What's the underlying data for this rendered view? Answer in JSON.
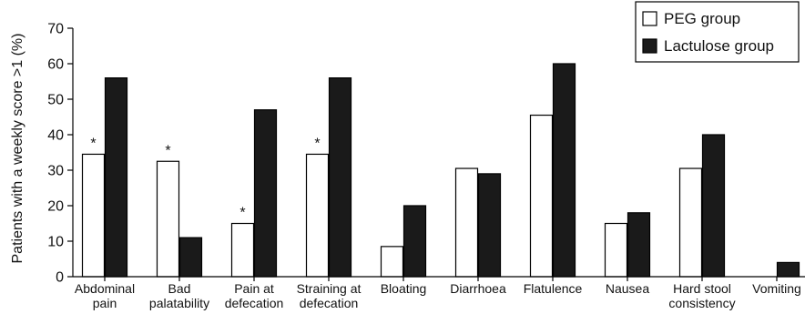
{
  "chart_data": {
    "type": "bar",
    "ylabel": "Patients with a weekly score >1 (%)",
    "xlabel": "",
    "ylim": [
      0,
      70
    ],
    "yticks": [
      0,
      10,
      20,
      30,
      40,
      50,
      60,
      70
    ],
    "categories": [
      [
        "Abdominal",
        "pain"
      ],
      [
        "Bad",
        "palatability"
      ],
      [
        "Pain at",
        "defecation"
      ],
      [
        "Straining at",
        "defecation"
      ],
      [
        "Bloating"
      ],
      [
        "Diarrhoea"
      ],
      [
        "Flatulence"
      ],
      [
        "Nausea"
      ],
      [
        "Hard stool",
        "consistency"
      ],
      [
        "Vomiting"
      ]
    ],
    "series": [
      {
        "name": "PEG group",
        "fill": "#ffffff",
        "stroke": "#000000",
        "values": [
          34.5,
          32.5,
          15,
          34.5,
          8.5,
          30.5,
          45.5,
          15,
          30.5,
          0
        ]
      },
      {
        "name": "Lactulose group",
        "fill": "#1a1a1a",
        "stroke": "#000000",
        "values": [
          56,
          11,
          47,
          56,
          20,
          29,
          60,
          18,
          40,
          4
        ]
      }
    ],
    "significance_marker": "*",
    "significant_categories": [
      0,
      1,
      2,
      3
    ],
    "legend_position": "top-right"
  }
}
